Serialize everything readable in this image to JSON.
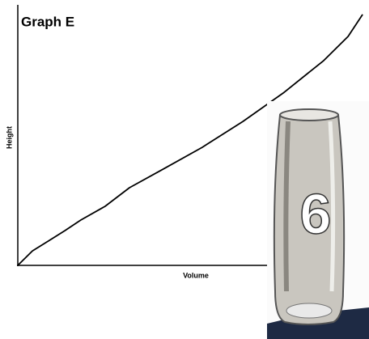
{
  "chart_data": {
    "type": "line",
    "title": "Graph E",
    "x_label": "Volume",
    "y_label": "Height",
    "x": [
      0,
      4.2,
      8.8,
      13.5,
      18.1,
      25.1,
      32.1,
      41.4,
      53.0,
      64.7,
      76.3,
      87.9,
      94.9,
      99.1
    ],
    "values": [
      0,
      5.6,
      9.4,
      13.4,
      17.5,
      22.8,
      30.0,
      36.9,
      45.6,
      55.6,
      66.6,
      79.1,
      88.4,
      96.9
    ],
    "color": "#000000",
    "xlim": [
      0,
      100
    ],
    "ylim": [
      0,
      100
    ]
  },
  "photo": {
    "label": "6"
  }
}
